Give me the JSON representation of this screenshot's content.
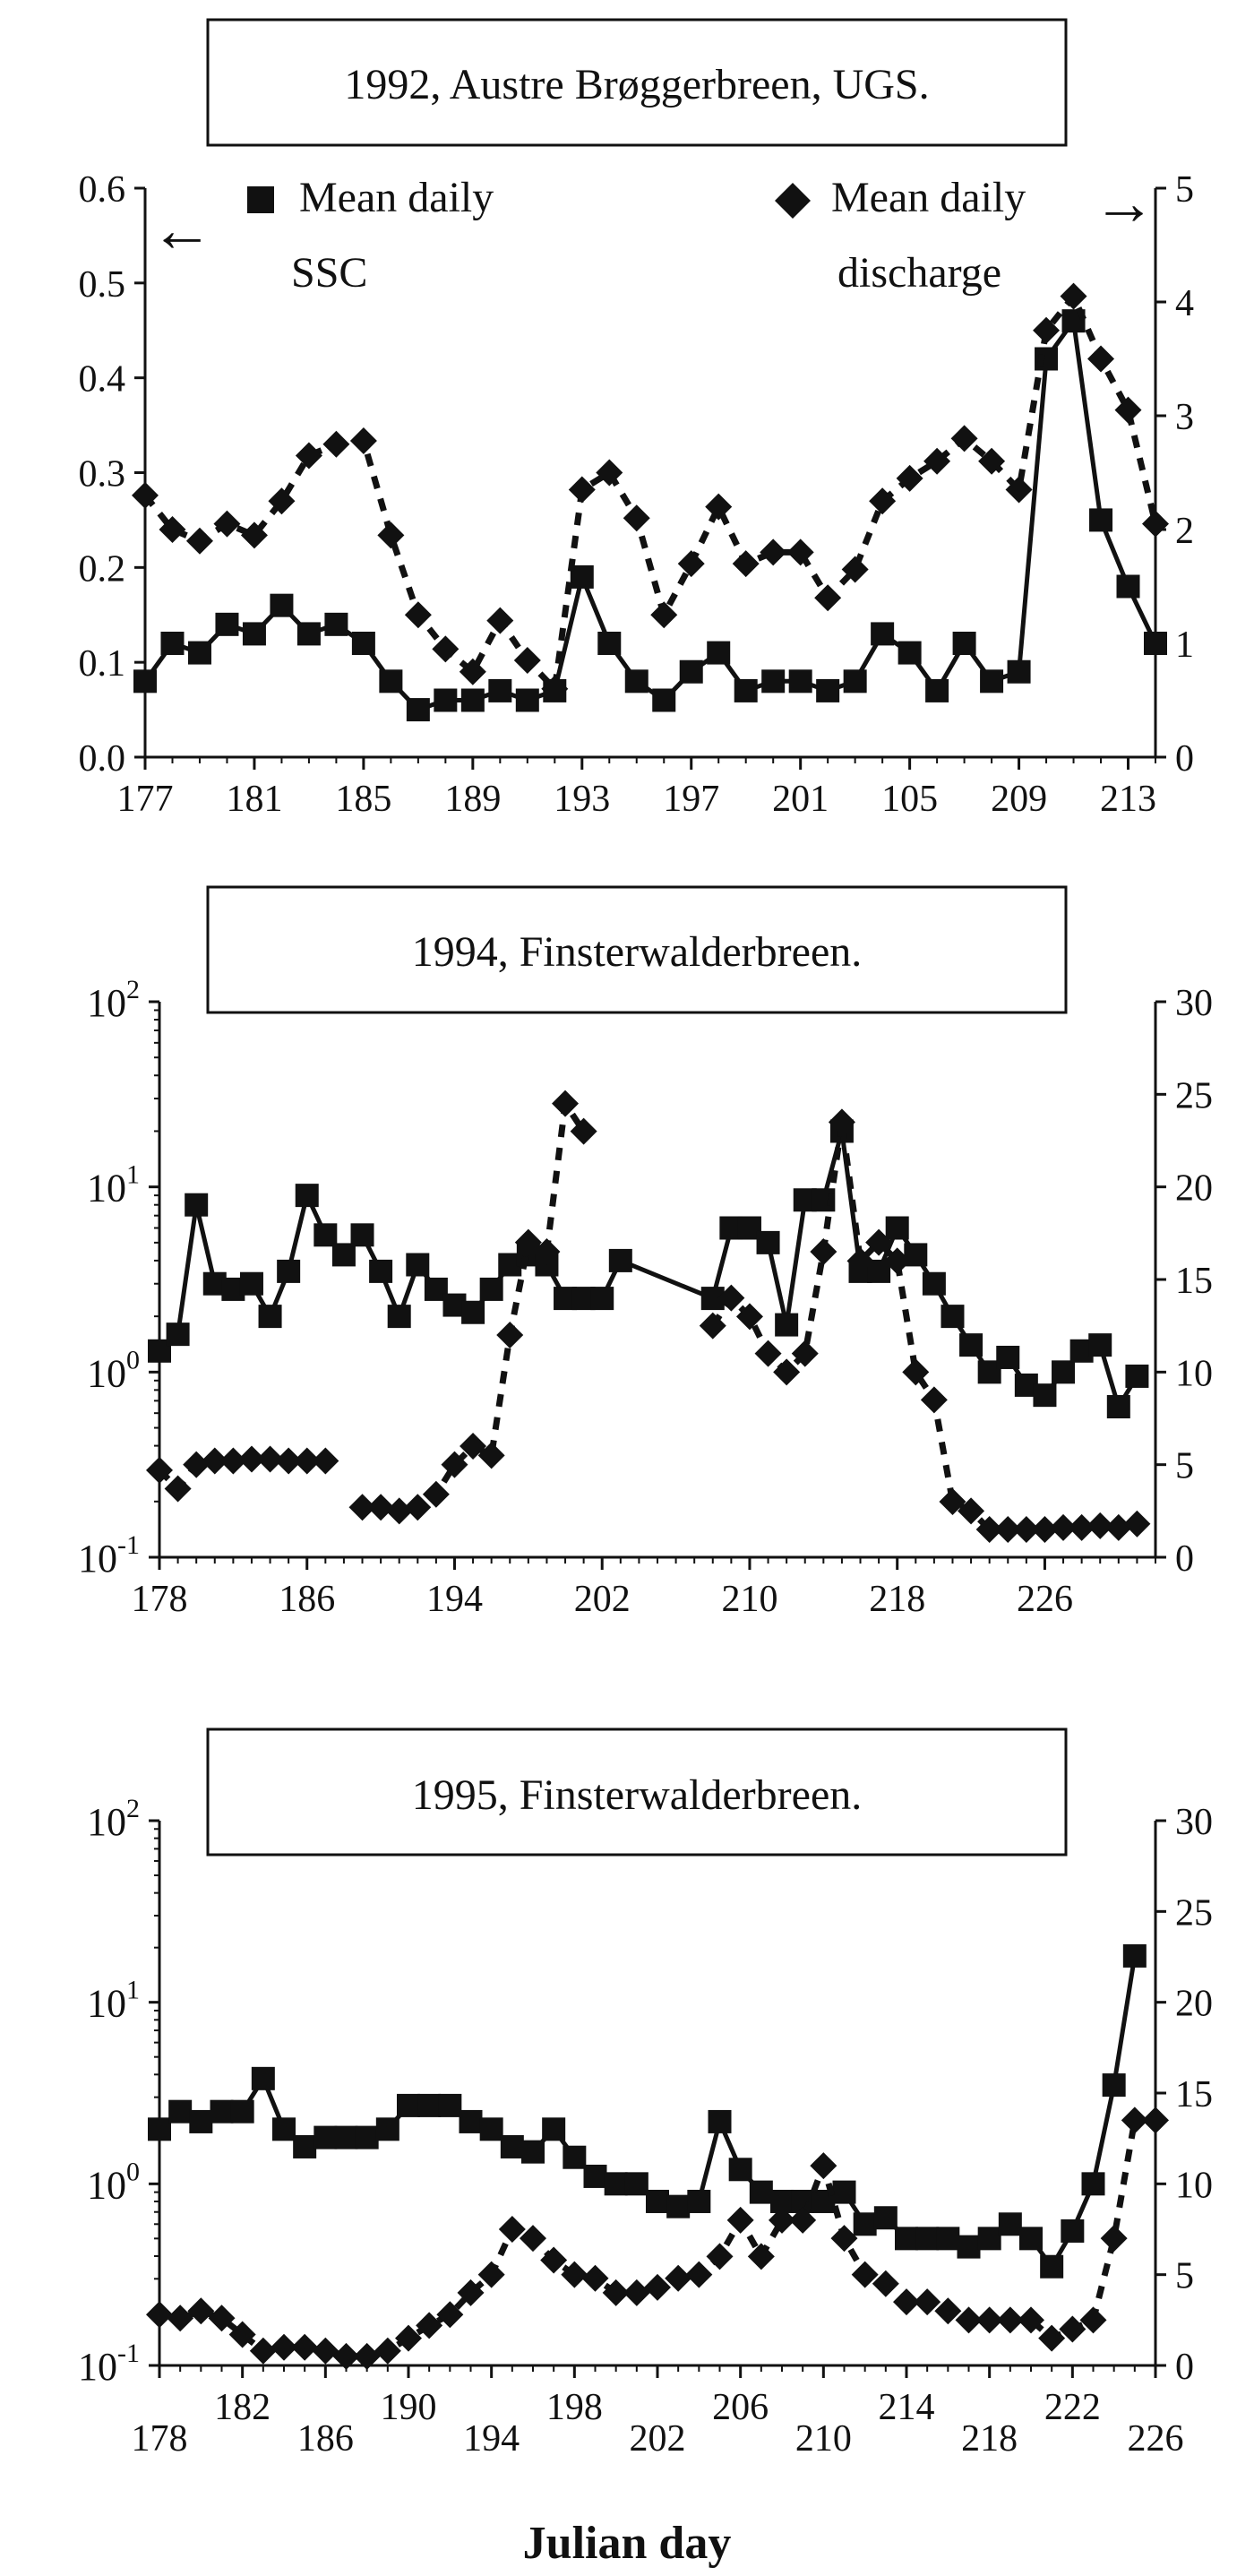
{
  "figure": {
    "xlabel": "Julian day",
    "colors": {
      "ink": "#111111",
      "paper": "#ffffff"
    }
  },
  "chart_data": [
    {
      "type": "line",
      "title": "1992, Austre Brøggerbreen, UGS.",
      "left_axis": {
        "scale": "linear",
        "range": [
          0,
          0.6
        ],
        "ticks": [
          "0.0",
          "0.1",
          "0.2",
          "0.3",
          "0.4",
          "0.5",
          "0.6"
        ]
      },
      "right_axis": {
        "scale": "linear",
        "range": [
          0,
          5
        ],
        "ticks": [
          "0",
          "1",
          "2",
          "3",
          "4",
          "5"
        ]
      },
      "x_axis": {
        "range": [
          177,
          214
        ],
        "ticks": [
          "177",
          "181",
          "185",
          "189",
          "193",
          "197",
          "201",
          "105",
          "209",
          "213"
        ]
      },
      "legend": {
        "ssc_label_line1": "Mean daily",
        "ssc_label_line2": "SSC",
        "q_label_line1": "Mean daily",
        "q_label_line2": "discharge",
        "ssc_arrow": "←",
        "q_arrow": "→"
      },
      "series": [
        {
          "name": "Mean daily SSC",
          "marker": "square",
          "style": "solid",
          "axis": "left",
          "x": [
            177,
            178,
            179,
            180,
            181,
            182,
            183,
            184,
            185,
            186,
            187,
            188,
            189,
            190,
            191,
            192,
            193,
            194,
            195,
            196,
            197,
            198,
            199,
            200,
            201,
            202,
            203,
            204,
            205,
            206,
            207,
            208,
            209,
            210,
            211,
            212,
            213,
            214
          ],
          "y": [
            0.08,
            0.12,
            0.11,
            0.14,
            0.13,
            0.16,
            0.13,
            0.14,
            0.12,
            0.08,
            0.05,
            0.06,
            0.06,
            0.07,
            0.06,
            0.07,
            0.19,
            0.12,
            0.08,
            0.06,
            0.09,
            0.11,
            0.07,
            0.08,
            0.08,
            0.07,
            0.08,
            0.13,
            0.11,
            0.07,
            0.12,
            0.08,
            0.09,
            0.42,
            0.46,
            0.25,
            0.18,
            0.12
          ]
        },
        {
          "name": "Mean daily discharge",
          "marker": "diamond",
          "style": "dashed",
          "axis": "right",
          "x": [
            177,
            178,
            179,
            180,
            181,
            182,
            183,
            184,
            185,
            186,
            187,
            188,
            189,
            190,
            191,
            192,
            193,
            194,
            195,
            196,
            197,
            198,
            199,
            200,
            201,
            202,
            203,
            204,
            205,
            206,
            207,
            208,
            209,
            210,
            211,
            212,
            213,
            214
          ],
          "y": [
            2.3,
            2.0,
            1.9,
            2.05,
            1.95,
            2.25,
            2.65,
            2.75,
            2.78,
            1.95,
            1.25,
            0.95,
            0.75,
            1.2,
            0.85,
            0.6,
            2.35,
            2.5,
            2.1,
            1.25,
            1.7,
            2.2,
            1.7,
            1.8,
            1.8,
            1.4,
            1.65,
            2.25,
            2.45,
            2.6,
            2.8,
            2.6,
            2.35,
            3.75,
            4.05,
            3.5,
            3.05,
            2.05
          ]
        }
      ]
    },
    {
      "type": "line",
      "title": "1994, Finsterwalderbreen.",
      "left_axis": {
        "scale": "log",
        "range": [
          -1,
          2
        ],
        "ticks": [
          {
            "base": "10",
            "exp": "2"
          },
          {
            "base": "10",
            "exp": "1"
          },
          {
            "base": "10",
            "exp": "0"
          },
          {
            "base": "10",
            "exp": "-1"
          }
        ]
      },
      "right_axis": {
        "scale": "linear",
        "range": [
          0,
          30
        ],
        "ticks": [
          "0",
          "5",
          "10",
          "15",
          "20",
          "25",
          "30"
        ]
      },
      "x_axis": {
        "range": [
          178,
          232
        ],
        "ticks": [
          "178",
          "186",
          "194",
          "202",
          "210",
          "218",
          "226"
        ]
      },
      "series": [
        {
          "name": "Mean daily SSC",
          "marker": "square",
          "style": "solid",
          "axis": "left",
          "x": [
            178,
            179,
            180,
            181,
            182,
            183,
            184,
            185,
            186,
            187,
            188,
            189,
            190,
            191,
            192,
            193,
            194,
            195,
            196,
            197,
            198,
            199,
            200,
            201,
            202,
            203,
            208,
            209,
            210,
            211,
            212,
            213,
            214,
            215,
            216,
            217,
            218,
            219,
            220,
            221,
            222,
            223,
            224,
            225,
            226,
            227,
            228,
            229,
            230,
            231
          ],
          "y": [
            1.3,
            1.6,
            8.0,
            3.0,
            2.8,
            3.0,
            2.0,
            3.5,
            9.0,
            5.5,
            4.3,
            5.5,
            3.5,
            2.0,
            3.8,
            2.8,
            2.3,
            2.1,
            2.8,
            3.8,
            4.3,
            3.8,
            2.5,
            2.5,
            2.5,
            4.0,
            2.5,
            6.0,
            6.0,
            5.0,
            1.8,
            8.5,
            8.5,
            20.0,
            3.5,
            3.5,
            6.0,
            4.3,
            3.0,
            2.0,
            1.4,
            1.0,
            1.2,
            0.85,
            0.75,
            1.0,
            1.3,
            1.4,
            0.65,
            0.95
          ]
        },
        {
          "name": "Mean daily discharge",
          "marker": "diamond",
          "style": "dashed",
          "axis": "right",
          "x": [
            178,
            179,
            180,
            181,
            182,
            183,
            184,
            185,
            186,
            187,
            189,
            190,
            191,
            192,
            193,
            194,
            195,
            196,
            197,
            198,
            199,
            200,
            201,
            208,
            209,
            210,
            211,
            212,
            213,
            214,
            215,
            216,
            217,
            218,
            219,
            220,
            221,
            222,
            223,
            224,
            225,
            226,
            227,
            228,
            229,
            230,
            231
          ],
          "y": [
            4.7,
            3.7,
            5.0,
            5.2,
            5.2,
            5.3,
            5.3,
            5.2,
            5.2,
            5.2,
            2.7,
            2.7,
            2.5,
            2.7,
            3.4,
            5.0,
            6.0,
            5.5,
            12.0,
            17.0,
            16.5,
            24.5,
            23.0,
            12.5,
            14.0,
            13.0,
            11.0,
            10.0,
            11.0,
            16.5,
            23.5,
            16.0,
            17.0,
            16.0,
            10.0,
            8.5,
            3.0,
            2.5,
            1.5,
            1.5,
            1.5,
            1.5,
            1.6,
            1.6,
            1.7,
            1.6,
            1.8
          ]
        }
      ]
    },
    {
      "type": "line",
      "title": "1995, Finsterwalderbreen.",
      "left_axis": {
        "scale": "log",
        "range": [
          -1,
          2
        ],
        "ticks": [
          {
            "base": "10",
            "exp": "2"
          },
          {
            "base": "10",
            "exp": "1"
          },
          {
            "base": "10",
            "exp": "0"
          },
          {
            "base": "10",
            "exp": "-1"
          }
        ]
      },
      "right_axis": {
        "scale": "linear",
        "range": [
          0,
          30
        ],
        "ticks": [
          "0",
          "5",
          "10",
          "15",
          "20",
          "25",
          "30"
        ]
      },
      "x_axis": {
        "range": [
          178,
          226
        ],
        "ticks": [
          "178",
          "182",
          "186",
          "190",
          "194",
          "198",
          "202",
          "206",
          "210",
          "214",
          "218",
          "222",
          "226"
        ]
      },
      "series": [
        {
          "name": "Mean daily SSC",
          "marker": "square",
          "style": "solid",
          "axis": "left",
          "x": [
            178,
            179,
            180,
            181,
            182,
            183,
            184,
            185,
            186,
            187,
            188,
            189,
            190,
            191,
            192,
            193,
            194,
            195,
            196,
            197,
            198,
            199,
            200,
            201,
            202,
            203,
            204,
            205,
            206,
            207,
            208,
            209,
            210,
            211,
            212,
            213,
            214,
            215,
            216,
            217,
            218,
            219,
            220,
            221,
            222,
            223,
            224,
            225
          ],
          "y": [
            2.0,
            2.5,
            2.2,
            2.5,
            2.5,
            3.8,
            2.0,
            1.6,
            1.8,
            1.8,
            1.8,
            2.0,
            2.7,
            2.7,
            2.7,
            2.2,
            2.0,
            1.6,
            1.5,
            2.0,
            1.4,
            1.1,
            1.0,
            1.0,
            0.8,
            0.75,
            0.8,
            2.2,
            1.2,
            0.9,
            0.8,
            0.8,
            0.8,
            0.9,
            0.6,
            0.65,
            0.5,
            0.5,
            0.5,
            0.45,
            0.5,
            0.6,
            0.5,
            0.35,
            0.55,
            1.0,
            3.5,
            18.0
          ]
        },
        {
          "name": "Mean daily discharge",
          "marker": "diamond",
          "style": "dashed",
          "axis": "right",
          "x": [
            178,
            179,
            180,
            181,
            182,
            183,
            184,
            185,
            186,
            187,
            188,
            189,
            190,
            191,
            192,
            193,
            194,
            195,
            196,
            197,
            198,
            199,
            200,
            201,
            202,
            203,
            204,
            205,
            206,
            207,
            208,
            209,
            210,
            211,
            212,
            213,
            214,
            215,
            216,
            217,
            218,
            219,
            220,
            221,
            222,
            223,
            224,
            225,
            226
          ],
          "y": [
            2.8,
            2.6,
            3.0,
            2.6,
            1.7,
            0.8,
            1.0,
            1.0,
            0.8,
            0.5,
            0.5,
            0.8,
            1.5,
            2.2,
            2.8,
            4.0,
            5.0,
            7.5,
            7.0,
            5.8,
            5.0,
            4.8,
            4.0,
            4.0,
            4.3,
            4.8,
            5.0,
            6.0,
            8.0,
            6.0,
            8.0,
            8.0,
            11.0,
            7.0,
            5.0,
            4.5,
            3.5,
            3.5,
            3.0,
            2.5,
            2.5,
            2.5,
            2.5,
            1.5,
            2.0,
            2.5,
            7.0,
            13.5,
            13.5
          ]
        }
      ]
    }
  ]
}
